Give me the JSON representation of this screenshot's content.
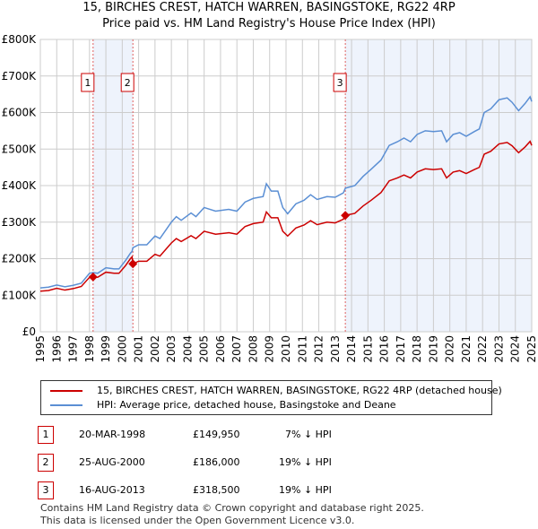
{
  "title": "15, BIRCHES CREST, HATCH WARREN, BASINGSTOKE, RG22 4RP",
  "subtitle": "Price paid vs. HM Land Registry's House Price Index (HPI)",
  "colors": {
    "price": "#cc0000",
    "hpi": "#5b8fd4",
    "shade": "#eef3fc",
    "grid": "#cccccc"
  },
  "chart_data": {
    "type": "line",
    "title": "15, BIRCHES CREST, HATCH WARREN, BASINGSTOKE, RG22 4RP",
    "xlabel": "",
    "ylabel": "",
    "xlim": [
      1995,
      2025
    ],
    "ylim": [
      0,
      800000
    ],
    "xticks": [
      "1995",
      "1996",
      "1997",
      "1998",
      "1999",
      "2000",
      "2001",
      "2002",
      "2003",
      "2004",
      "2005",
      "2006",
      "2007",
      "2008",
      "2009",
      "2010",
      "2011",
      "2012",
      "2013",
      "2014",
      "2015",
      "2016",
      "2017",
      "2018",
      "2019",
      "2020",
      "2021",
      "2022",
      "2023",
      "2024",
      "2025"
    ],
    "yticks": [
      {
        "v": 0,
        "label": "£0"
      },
      {
        "v": 100000,
        "label": "£100K"
      },
      {
        "v": 200000,
        "label": "£200K"
      },
      {
        "v": 300000,
        "label": "£300K"
      },
      {
        "v": 400000,
        "label": "£400K"
      },
      {
        "v": 500000,
        "label": "£500K"
      },
      {
        "v": 600000,
        "label": "£600K"
      },
      {
        "v": 700000,
        "label": "£700K"
      },
      {
        "v": 800000,
        "label": "£800K"
      }
    ],
    "grid": true,
    "x": [
      1995.0,
      1995.5,
      1996.0,
      1996.5,
      1997.0,
      1997.5,
      1998.0,
      1998.22,
      1998.5,
      1999.0,
      1999.5,
      1999.8,
      2000.2,
      2000.5,
      2000.6,
      2000.65,
      2001.0,
      2001.5,
      2002.0,
      2002.3,
      2003.0,
      2003.3,
      2003.6,
      2004.2,
      2004.5,
      2005.0,
      2005.7,
      2006.5,
      2007.0,
      2007.5,
      2008.0,
      2008.6,
      2008.8,
      2009.1,
      2009.5,
      2009.8,
      2010.1,
      2010.6,
      2011.1,
      2011.5,
      2011.9,
      2012.5,
      2013.0,
      2013.5,
      2013.62,
      2014.2,
      2014.7,
      2015.2,
      2015.8,
      2016.3,
      2016.8,
      2017.2,
      2017.6,
      2018.0,
      2018.5,
      2019.0,
      2019.5,
      2019.8,
      2020.2,
      2020.6,
      2021.0,
      2021.5,
      2021.8,
      2022.1,
      2022.5,
      2023.0,
      2023.5,
      2023.8,
      2024.2,
      2024.6,
      2024.9,
      2025.0
    ],
    "series": [
      {
        "name": "15, BIRCHES CREST, HATCH WARREN, BASINGSTOKE, RG22 4RP (detached house)",
        "color": "#cc0000",
        "values": [
          111000,
          113000,
          119000,
          114000,
          118000,
          124000,
          149000,
          149950,
          149000,
          163000,
          160000,
          160000,
          181000,
          200000,
          205000,
          186000,
          193000,
          193000,
          212000,
          207000,
          243000,
          255000,
          247000,
          263000,
          255000,
          275000,
          267000,
          271000,
          267000,
          288000,
          296000,
          300000,
          328000,
          312000,
          312000,
          275000,
          262000,
          284000,
          292000,
          304000,
          293000,
          300000,
          298000,
          308000,
          318500,
          324000,
          344000,
          360000,
          381000,
          413000,
          421000,
          429000,
          421000,
          437000,
          446000,
          444000,
          446000,
          421000,
          437000,
          441000,
          433000,
          444000,
          450000,
          486000,
          494000,
          514000,
          518000,
          509000,
          490000,
          506000,
          521000,
          510000
        ]
      },
      {
        "name": "HPI: Average price, detached house, Basingstoke and Deane",
        "color": "#5b8fd4",
        "values": [
          120000,
          122000,
          128000,
          123000,
          127000,
          133000,
          160000,
          162000,
          160000,
          175000,
          172000,
          172000,
          195000,
          215000,
          220000,
          230000,
          238000,
          238000,
          262000,
          255000,
          300000,
          315000,
          305000,
          325000,
          315000,
          340000,
          330000,
          335000,
          330000,
          355000,
          365000,
          370000,
          405000,
          385000,
          385000,
          340000,
          323000,
          350000,
          360000,
          375000,
          362000,
          370000,
          368000,
          380000,
          393000,
          400000,
          425000,
          445000,
          470000,
          510000,
          520000,
          530000,
          520000,
          540000,
          550000,
          548000,
          550000,
          520000,
          540000,
          545000,
          535000,
          548000,
          555000,
          600000,
          610000,
          635000,
          640000,
          628000,
          605000,
          625000,
          643000,
          630000
        ]
      }
    ],
    "sales": [
      {
        "label": "1",
        "x": 1998.22,
        "price": 149950,
        "date": "20-MAR-1998",
        "price_text": "£149,950",
        "hpi_text": "7% ↓ HPI"
      },
      {
        "label": "2",
        "x": 2000.65,
        "price": 186000,
        "date": "25-AUG-2000",
        "price_text": "£186,000",
        "hpi_text": "19% ↓ HPI"
      },
      {
        "label": "3",
        "x": 2013.62,
        "price": 318500,
        "date": "16-AUG-2013",
        "price_text": "£318,500",
        "hpi_text": "19% ↓ HPI"
      }
    ],
    "shaded": [
      [
        1998.22,
        2000.65
      ],
      [
        2013.62,
        2025
      ]
    ]
  },
  "footer": [
    "Contains HM Land Registry data © Crown copyright and database right 2025.",
    "This data is licensed under the Open Government Licence v3.0."
  ]
}
